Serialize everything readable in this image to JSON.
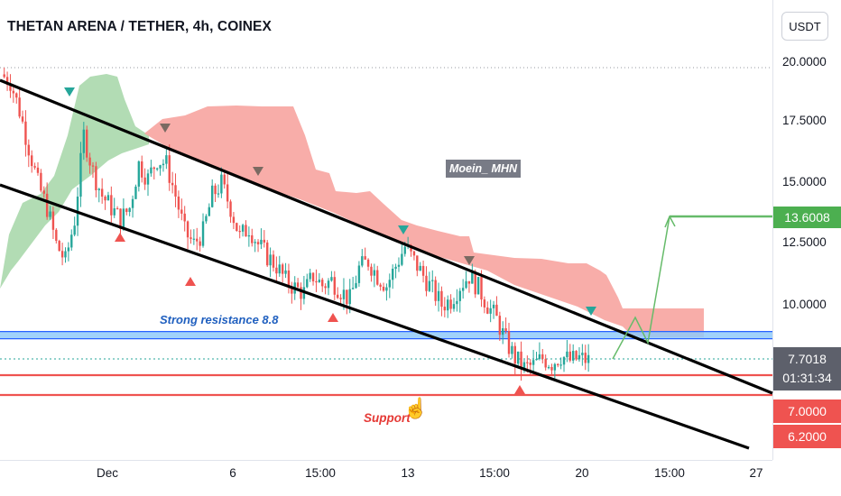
{
  "header": {
    "title": "THETAN ARENA / TETHER, 4h, COINEX"
  },
  "currency_button": "USDT",
  "price_axis": {
    "labels": [
      "20.0000",
      "17.5000",
      "15.0000",
      "12.5000",
      "10.0000"
    ],
    "badges": {
      "target": "13.6008",
      "last_price": "7.7018",
      "countdown": "01:31:34",
      "support_1": "7.0000",
      "support_2": "6.2000"
    }
  },
  "time_axis": {
    "labels": [
      "Dec",
      "6",
      "15:00",
      "13",
      "15:00",
      "20",
      "15:00",
      "27"
    ]
  },
  "annotations": {
    "watermark": "Moein_ MHN",
    "resistance_label": "Strong resistance 8.8",
    "support_label": "Support"
  },
  "colors": {
    "bull": "#26a69a",
    "bear": "#ef5350",
    "cloud_bull": "#a5d6a7",
    "cloud_bear": "#f8a9a4",
    "resistance": "#2962ff",
    "target": "#4caf50",
    "axis_text": "#131722"
  },
  "chart_data": {
    "type": "candlestick",
    "symbol": "THETAN ARENA / TETHER",
    "interval": "4h",
    "exchange": "COINEX",
    "y_ticks": [
      20,
      17.5,
      15,
      12.5,
      10
    ],
    "x_ticks": [
      "Dec",
      "6",
      "15:00",
      "13",
      "15:00",
      "20",
      "15:00",
      "27"
    ],
    "close_path": [
      19.5,
      19.2,
      18.0,
      16.5,
      15.0,
      14.0,
      12.5,
      11.8,
      13.5,
      17.0,
      15.5,
      14.5,
      14.0,
      13.5,
      14.0,
      15.8,
      15.2,
      16.0,
      15.8,
      14.5,
      13.0,
      12.5,
      13.0,
      14.5,
      15.0,
      14.0,
      12.8,
      13.2,
      12.5,
      12.0,
      11.6,
      11.0,
      10.7,
      10.5,
      11.2,
      10.8,
      11.0,
      10.6,
      10.2,
      11.5,
      11.8,
      11.2,
      10.8,
      11.6,
      12.4,
      11.8,
      11.2,
      10.6,
      10.0,
      10.2,
      10.8,
      11.2,
      10.7,
      10.0,
      9.4,
      8.5,
      7.8,
      7.4,
      7.5,
      7.8,
      7.6,
      7.9,
      7.7,
      7.8,
      7.7
    ],
    "last_price": 7.7018,
    "target_price": 13.6008,
    "resistance_zone": [
      8.6,
      8.9
    ],
    "support_levels": [
      7.0,
      6.2
    ],
    "signals_up_x": [
      133,
      211,
      369,
      576
    ],
    "signals_down_x": [
      77,
      183,
      286,
      447,
      520,
      655
    ]
  }
}
